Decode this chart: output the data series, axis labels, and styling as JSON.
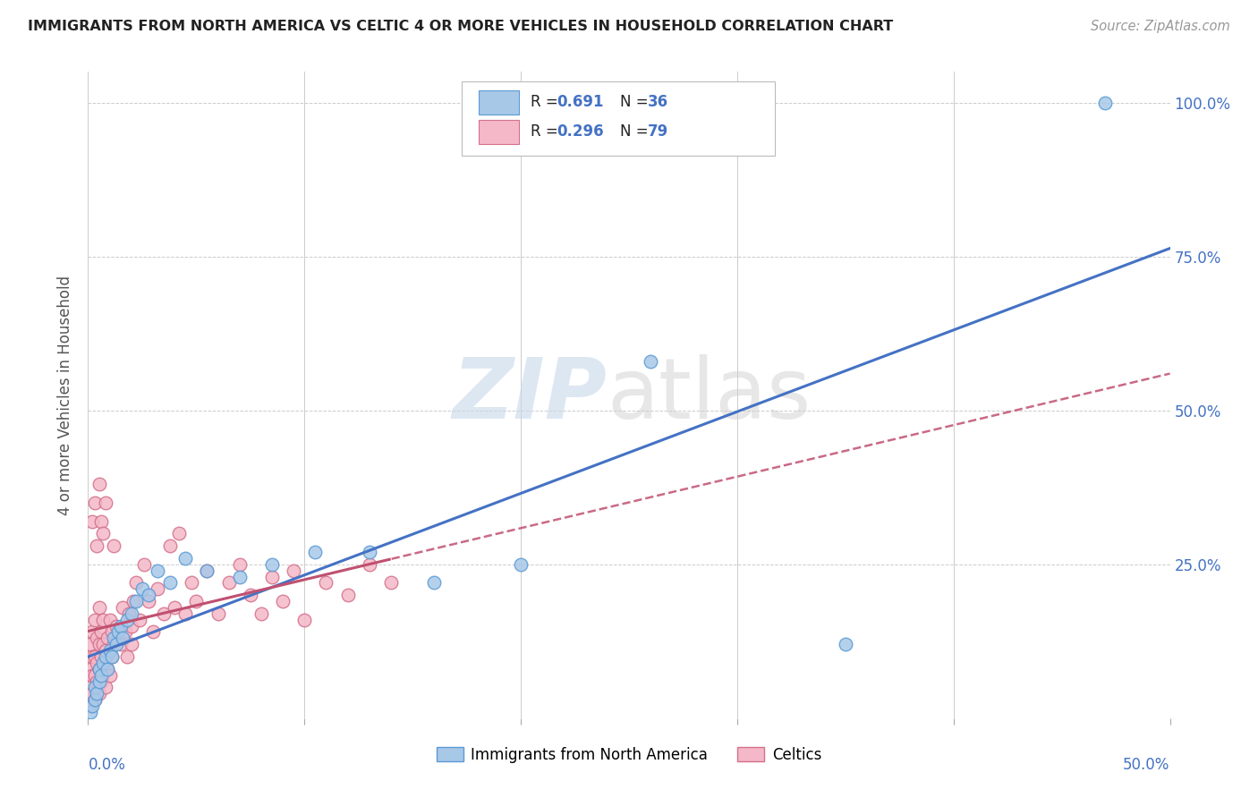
{
  "title": "IMMIGRANTS FROM NORTH AMERICA VS CELTIC 4 OR MORE VEHICLES IN HOUSEHOLD CORRELATION CHART",
  "source": "Source: ZipAtlas.com",
  "ylabel": "4 or more Vehicles in Household",
  "xlim": [
    0.0,
    0.5
  ],
  "ylim": [
    0.0,
    1.05
  ],
  "blue_color": "#a8c8e8",
  "blue_edge": "#5b9bd5",
  "pink_color": "#f4b8c8",
  "pink_edge": "#d4708a",
  "line_blue": "#4472c4",
  "line_pink": "#c05070",
  "legend_label1": "Immigrants from North America",
  "legend_label2": "Celtics",
  "blue_x": [
    0.001,
    0.002,
    0.003,
    0.003,
    0.004,
    0.005,
    0.005,
    0.006,
    0.007,
    0.008,
    0.009,
    0.01,
    0.011,
    0.012,
    0.013,
    0.014,
    0.015,
    0.016,
    0.018,
    0.02,
    0.022,
    0.025,
    0.028,
    0.032,
    0.038,
    0.045,
    0.055,
    0.07,
    0.085,
    0.105,
    0.13,
    0.16,
    0.2,
    0.26,
    0.35,
    0.47
  ],
  "blue_y": [
    0.01,
    0.02,
    0.03,
    0.05,
    0.04,
    0.06,
    0.08,
    0.07,
    0.09,
    0.1,
    0.08,
    0.11,
    0.1,
    0.13,
    0.12,
    0.14,
    0.15,
    0.13,
    0.16,
    0.17,
    0.19,
    0.21,
    0.2,
    0.24,
    0.22,
    0.26,
    0.24,
    0.23,
    0.25,
    0.27,
    0.27,
    0.22,
    0.25,
    0.58,
    0.12,
    1.0
  ],
  "pink_x": [
    0.001,
    0.001,
    0.001,
    0.001,
    0.002,
    0.002,
    0.002,
    0.002,
    0.003,
    0.003,
    0.003,
    0.003,
    0.004,
    0.004,
    0.004,
    0.005,
    0.005,
    0.005,
    0.005,
    0.006,
    0.006,
    0.006,
    0.007,
    0.007,
    0.007,
    0.008,
    0.008,
    0.009,
    0.009,
    0.01,
    0.01,
    0.011,
    0.011,
    0.012,
    0.013,
    0.014,
    0.015,
    0.016,
    0.017,
    0.018,
    0.019,
    0.02,
    0.021,
    0.022,
    0.024,
    0.026,
    0.028,
    0.03,
    0.032,
    0.035,
    0.038,
    0.04,
    0.042,
    0.045,
    0.048,
    0.05,
    0.055,
    0.06,
    0.065,
    0.07,
    0.075,
    0.08,
    0.085,
    0.09,
    0.095,
    0.1,
    0.11,
    0.12,
    0.13,
    0.14,
    0.002,
    0.003,
    0.004,
    0.005,
    0.006,
    0.007,
    0.008,
    0.012,
    0.02
  ],
  "pink_y": [
    0.02,
    0.05,
    0.08,
    0.12,
    0.04,
    0.07,
    0.1,
    0.14,
    0.03,
    0.07,
    0.1,
    0.16,
    0.06,
    0.09,
    0.13,
    0.04,
    0.08,
    0.12,
    0.18,
    0.06,
    0.1,
    0.14,
    0.07,
    0.12,
    0.16,
    0.05,
    0.11,
    0.08,
    0.13,
    0.07,
    0.16,
    0.1,
    0.14,
    0.12,
    0.15,
    0.13,
    0.12,
    0.18,
    0.14,
    0.1,
    0.17,
    0.15,
    0.19,
    0.22,
    0.16,
    0.25,
    0.19,
    0.14,
    0.21,
    0.17,
    0.28,
    0.18,
    0.3,
    0.17,
    0.22,
    0.19,
    0.24,
    0.17,
    0.22,
    0.25,
    0.2,
    0.17,
    0.23,
    0.19,
    0.24,
    0.16,
    0.22,
    0.2,
    0.25,
    0.22,
    0.32,
    0.35,
    0.28,
    0.38,
    0.32,
    0.3,
    0.35,
    0.28,
    0.12
  ]
}
